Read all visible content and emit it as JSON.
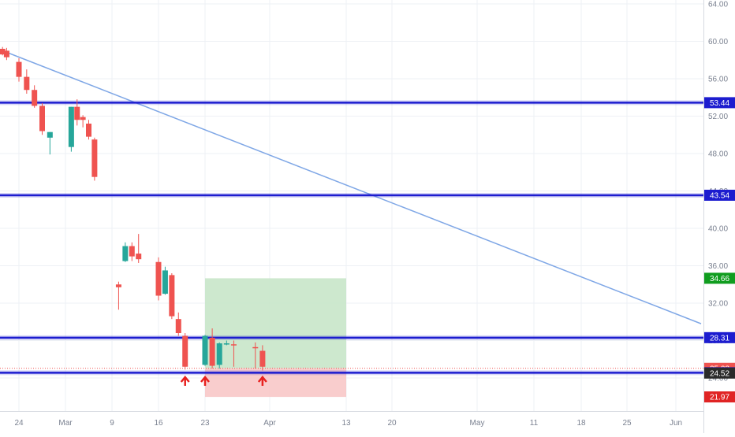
{
  "colors": {
    "up": "#26a69a",
    "down": "#ef5350",
    "hline": "#1c1ccf",
    "trend": "#7fa7e6",
    "target_fill": "#c8e6c9",
    "stop_fill": "#f8c8c8",
    "target_badge": "#109d1f",
    "stop_badge": "#e02424",
    "hline_badge": "#1c1ccf",
    "close_badge": "#ef5350",
    "grid": "#eef1f5",
    "arrow": "#e8211f"
  },
  "chart_data": {
    "type": "candlestick",
    "y_axis": {
      "range": [
        20.6,
        64.4
      ],
      "ticks": [
        "64.00",
        "60.00",
        "56.00",
        "52.00",
        "48.00",
        "44.00",
        "40.00",
        "36.00",
        "32.00",
        "28.00",
        "24.00"
      ]
    },
    "x_axis": {
      "ticks": [
        "24",
        "Mar",
        "9",
        "16",
        "23",
        "Apr",
        "13",
        "20",
        "May",
        "11",
        "18",
        "25",
        "Jun"
      ]
    },
    "candles": [
      {
        "date": "Feb 20",
        "open": 59.2,
        "high": 59.4,
        "low": 58.5,
        "close": 58.6
      },
      {
        "date": "Feb 21",
        "open": 59.0,
        "high": 59.3,
        "low": 58.0,
        "close": 58.3
      },
      {
        "date": "Feb 24",
        "open": 57.8,
        "high": 58.2,
        "low": 55.7,
        "close": 56.2
      },
      {
        "date": "Feb 25",
        "open": 56.2,
        "high": 57.0,
        "low": 54.4,
        "close": 54.8
      },
      {
        "date": "Feb 26",
        "open": 54.8,
        "high": 55.3,
        "low": 52.9,
        "close": 53.1
      },
      {
        "date": "Feb 27",
        "open": 53.1,
        "high": 53.4,
        "low": 50.0,
        "close": 50.4
      },
      {
        "date": "Feb 28",
        "open": 49.7,
        "high": 50.3,
        "low": 47.9,
        "close": 50.3
      },
      {
        "date": "Mar 2",
        "open": 48.7,
        "high": 53.0,
        "low": 48.2,
        "close": 53.0
      },
      {
        "date": "Mar 3",
        "open": 53.0,
        "high": 53.8,
        "low": 51.0,
        "close": 51.6
      },
      {
        "date": "Mar 4",
        "open": 51.9,
        "high": 52.1,
        "low": 50.8,
        "close": 51.6
      },
      {
        "date": "Mar 5",
        "open": 51.2,
        "high": 51.6,
        "low": 49.5,
        "close": 49.8
      },
      {
        "date": "Mar 6",
        "open": 49.5,
        "high": 49.7,
        "low": 45.1,
        "close": 45.5
      },
      {
        "date": "Mar 10",
        "open": 34.0,
        "high": 34.3,
        "low": 31.3,
        "close": 33.7
      },
      {
        "date": "Mar 11",
        "open": 36.5,
        "high": 38.5,
        "low": 36.4,
        "close": 38.1
      },
      {
        "date": "Mar 12",
        "open": 38.1,
        "high": 38.5,
        "low": 36.5,
        "close": 37.0
      },
      {
        "date": "Mar 13",
        "open": 37.3,
        "high": 39.4,
        "low": 36.3,
        "close": 36.7
      },
      {
        "date": "Mar 16",
        "open": 36.4,
        "high": 36.9,
        "low": 32.3,
        "close": 32.8
      },
      {
        "date": "Mar 17",
        "open": 33.0,
        "high": 35.9,
        "low": 32.9,
        "close": 35.5
      },
      {
        "date": "Mar 18",
        "open": 35.0,
        "high": 35.2,
        "low": 30.3,
        "close": 30.6
      },
      {
        "date": "Mar 19",
        "open": 30.3,
        "high": 31.0,
        "low": 28.5,
        "close": 28.8
      },
      {
        "date": "Mar 20",
        "open": 28.5,
        "high": 28.8,
        "low": 24.9,
        "close": 25.2
      },
      {
        "date": "Mar 23",
        "open": 25.4,
        "high": 28.6,
        "low": 25.3,
        "close": 28.5
      },
      {
        "date": "Mar 24",
        "open": 28.3,
        "high": 29.3,
        "low": 25.0,
        "close": 25.3
      },
      {
        "date": "Mar 25",
        "open": 25.4,
        "high": 27.8,
        "low": 25.0,
        "close": 27.7
      },
      {
        "date": "Mar 26",
        "open": 27.6,
        "high": 28.0,
        "low": 27.5,
        "close": 27.7
      },
      {
        "date": "Mar 27",
        "open": 27.6,
        "high": 28.0,
        "low": 25.2,
        "close": 27.5
      },
      {
        "date": "Mar 30",
        "open": 27.3,
        "high": 27.8,
        "low": 25.0,
        "close": 27.2
      },
      {
        "date": "Mar 31",
        "open": 26.9,
        "high": 27.5,
        "low": 24.8,
        "close": 25.2
      }
    ],
    "horizontal_lines": [
      53.44,
      43.54,
      28.31,
      24.56
    ],
    "trendline": {
      "from": {
        "date": "Feb 20",
        "price": 59.0
      },
      "to": {
        "date": "Jun 5",
        "price": 29.8
      }
    },
    "position": {
      "type": "long",
      "entry": 25.03,
      "target": 34.66,
      "stop": 21.97,
      "from": "Mar 23",
      "to": "Apr 13"
    },
    "price_labels": [
      {
        "price": 53.44,
        "text": "53.44",
        "kind": "hline"
      },
      {
        "price": 43.54,
        "text": "43.54",
        "kind": "hline"
      },
      {
        "price": 34.66,
        "text": "34.66",
        "kind": "target"
      },
      {
        "price": 28.31,
        "text": "28.31",
        "kind": "hline"
      },
      {
        "price": 25.03,
        "text": "25.03",
        "kind": "close"
      },
      {
        "price": 24.56,
        "text": "24.56",
        "kind": "hline"
      },
      {
        "price": 24.52,
        "text": "24.52",
        "kind": "current"
      },
      {
        "price": 21.97,
        "text": "21.97",
        "kind": "stop"
      }
    ],
    "annotations": [
      {
        "type": "up-arrow",
        "date": "Mar 20"
      },
      {
        "type": "up-arrow",
        "date": "Mar 23"
      },
      {
        "type": "up-arrow",
        "date": "Mar 31"
      }
    ]
  }
}
